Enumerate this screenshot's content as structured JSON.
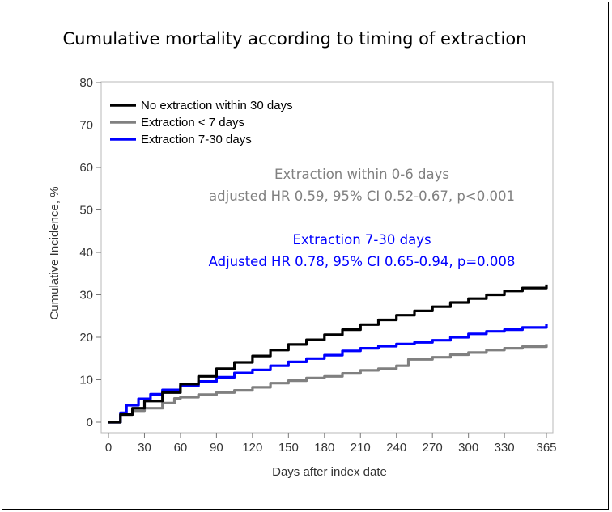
{
  "title": "Cumulative mortality according to timing of extraction",
  "chart_data": {
    "type": "line",
    "xlabel": "Days after index date",
    "ylabel": "Cumulative Incidence, %",
    "xlim": [
      0,
      365
    ],
    "ylim": [
      0,
      80
    ],
    "xticks": [
      0,
      30,
      60,
      90,
      120,
      150,
      180,
      210,
      240,
      270,
      300,
      330,
      365
    ],
    "yticks": [
      0,
      10,
      20,
      30,
      40,
      50,
      60,
      70,
      80
    ],
    "grid": false,
    "legend_position": "top-left",
    "series": [
      {
        "name": "No extraction within 30 days",
        "color": "#000000",
        "points": [
          [
            0,
            0
          ],
          [
            10,
            1.8
          ],
          [
            20,
            3.3
          ],
          [
            30,
            5
          ],
          [
            45,
            7
          ],
          [
            60,
            9
          ],
          [
            75,
            10.8
          ],
          [
            90,
            12.6
          ],
          [
            105,
            14.1
          ],
          [
            120,
            15.6
          ],
          [
            135,
            17
          ],
          [
            150,
            18.3
          ],
          [
            165,
            19.4
          ],
          [
            180,
            20.6
          ],
          [
            195,
            21.8
          ],
          [
            210,
            23
          ],
          [
            225,
            24.1
          ],
          [
            240,
            25.2
          ],
          [
            255,
            26.2
          ],
          [
            270,
            27.2
          ],
          [
            285,
            28.2
          ],
          [
            300,
            29.1
          ],
          [
            315,
            30
          ],
          [
            330,
            30.9
          ],
          [
            345,
            31.6
          ],
          [
            365,
            32.4
          ]
        ]
      },
      {
        "name": "Extraction < 7 days",
        "color": "#808080",
        "points": [
          [
            0,
            0
          ],
          [
            10,
            1.8
          ],
          [
            20,
            2.7
          ],
          [
            30,
            3.3
          ],
          [
            45,
            4.5
          ],
          [
            55,
            5.6
          ],
          [
            60,
            5.9
          ],
          [
            75,
            6.5
          ],
          [
            90,
            7.0
          ],
          [
            105,
            7.5
          ],
          [
            120,
            8.2
          ],
          [
            135,
            9.2
          ],
          [
            150,
            9.8
          ],
          [
            165,
            10.4
          ],
          [
            180,
            10.8
          ],
          [
            195,
            11.5
          ],
          [
            210,
            12.2
          ],
          [
            225,
            12.6
          ],
          [
            240,
            13.3
          ],
          [
            250,
            14.8
          ],
          [
            270,
            15.3
          ],
          [
            285,
            15.9
          ],
          [
            300,
            16.4
          ],
          [
            315,
            17.0
          ],
          [
            330,
            17.4
          ],
          [
            345,
            17.8
          ],
          [
            365,
            18.4
          ]
        ]
      },
      {
        "name": "Extraction 7-30 days",
        "color": "#0000ff",
        "points": [
          [
            0,
            0
          ],
          [
            10,
            2.2
          ],
          [
            15,
            4.0
          ],
          [
            25,
            5.5
          ],
          [
            35,
            6.6
          ],
          [
            45,
            7.6
          ],
          [
            60,
            8.6
          ],
          [
            75,
            9.6
          ],
          [
            90,
            10.6
          ],
          [
            105,
            11.6
          ],
          [
            120,
            12.3
          ],
          [
            135,
            13.3
          ],
          [
            150,
            14.2
          ],
          [
            165,
            15.0
          ],
          [
            180,
            15.8
          ],
          [
            195,
            16.8
          ],
          [
            210,
            17.4
          ],
          [
            225,
            17.9
          ],
          [
            240,
            18.4
          ],
          [
            255,
            18.8
          ],
          [
            270,
            19.3
          ],
          [
            285,
            20.0
          ],
          [
            300,
            20.8
          ],
          [
            315,
            21.4
          ],
          [
            330,
            21.8
          ],
          [
            345,
            22.3
          ],
          [
            365,
            23.1
          ]
        ]
      }
    ],
    "annotations": [
      {
        "lines": [
          "Extraction within 0-6 days",
          "adjusted HR 0.59, 95% CI 0.52-0.67, p<0.001"
        ],
        "color": "#808080"
      },
      {
        "lines": [
          "Extraction 7-30 days",
          "Adjusted HR 0.78, 95% CI 0.65-0.94, p=0.008"
        ],
        "color": "#0000ff"
      }
    ]
  }
}
